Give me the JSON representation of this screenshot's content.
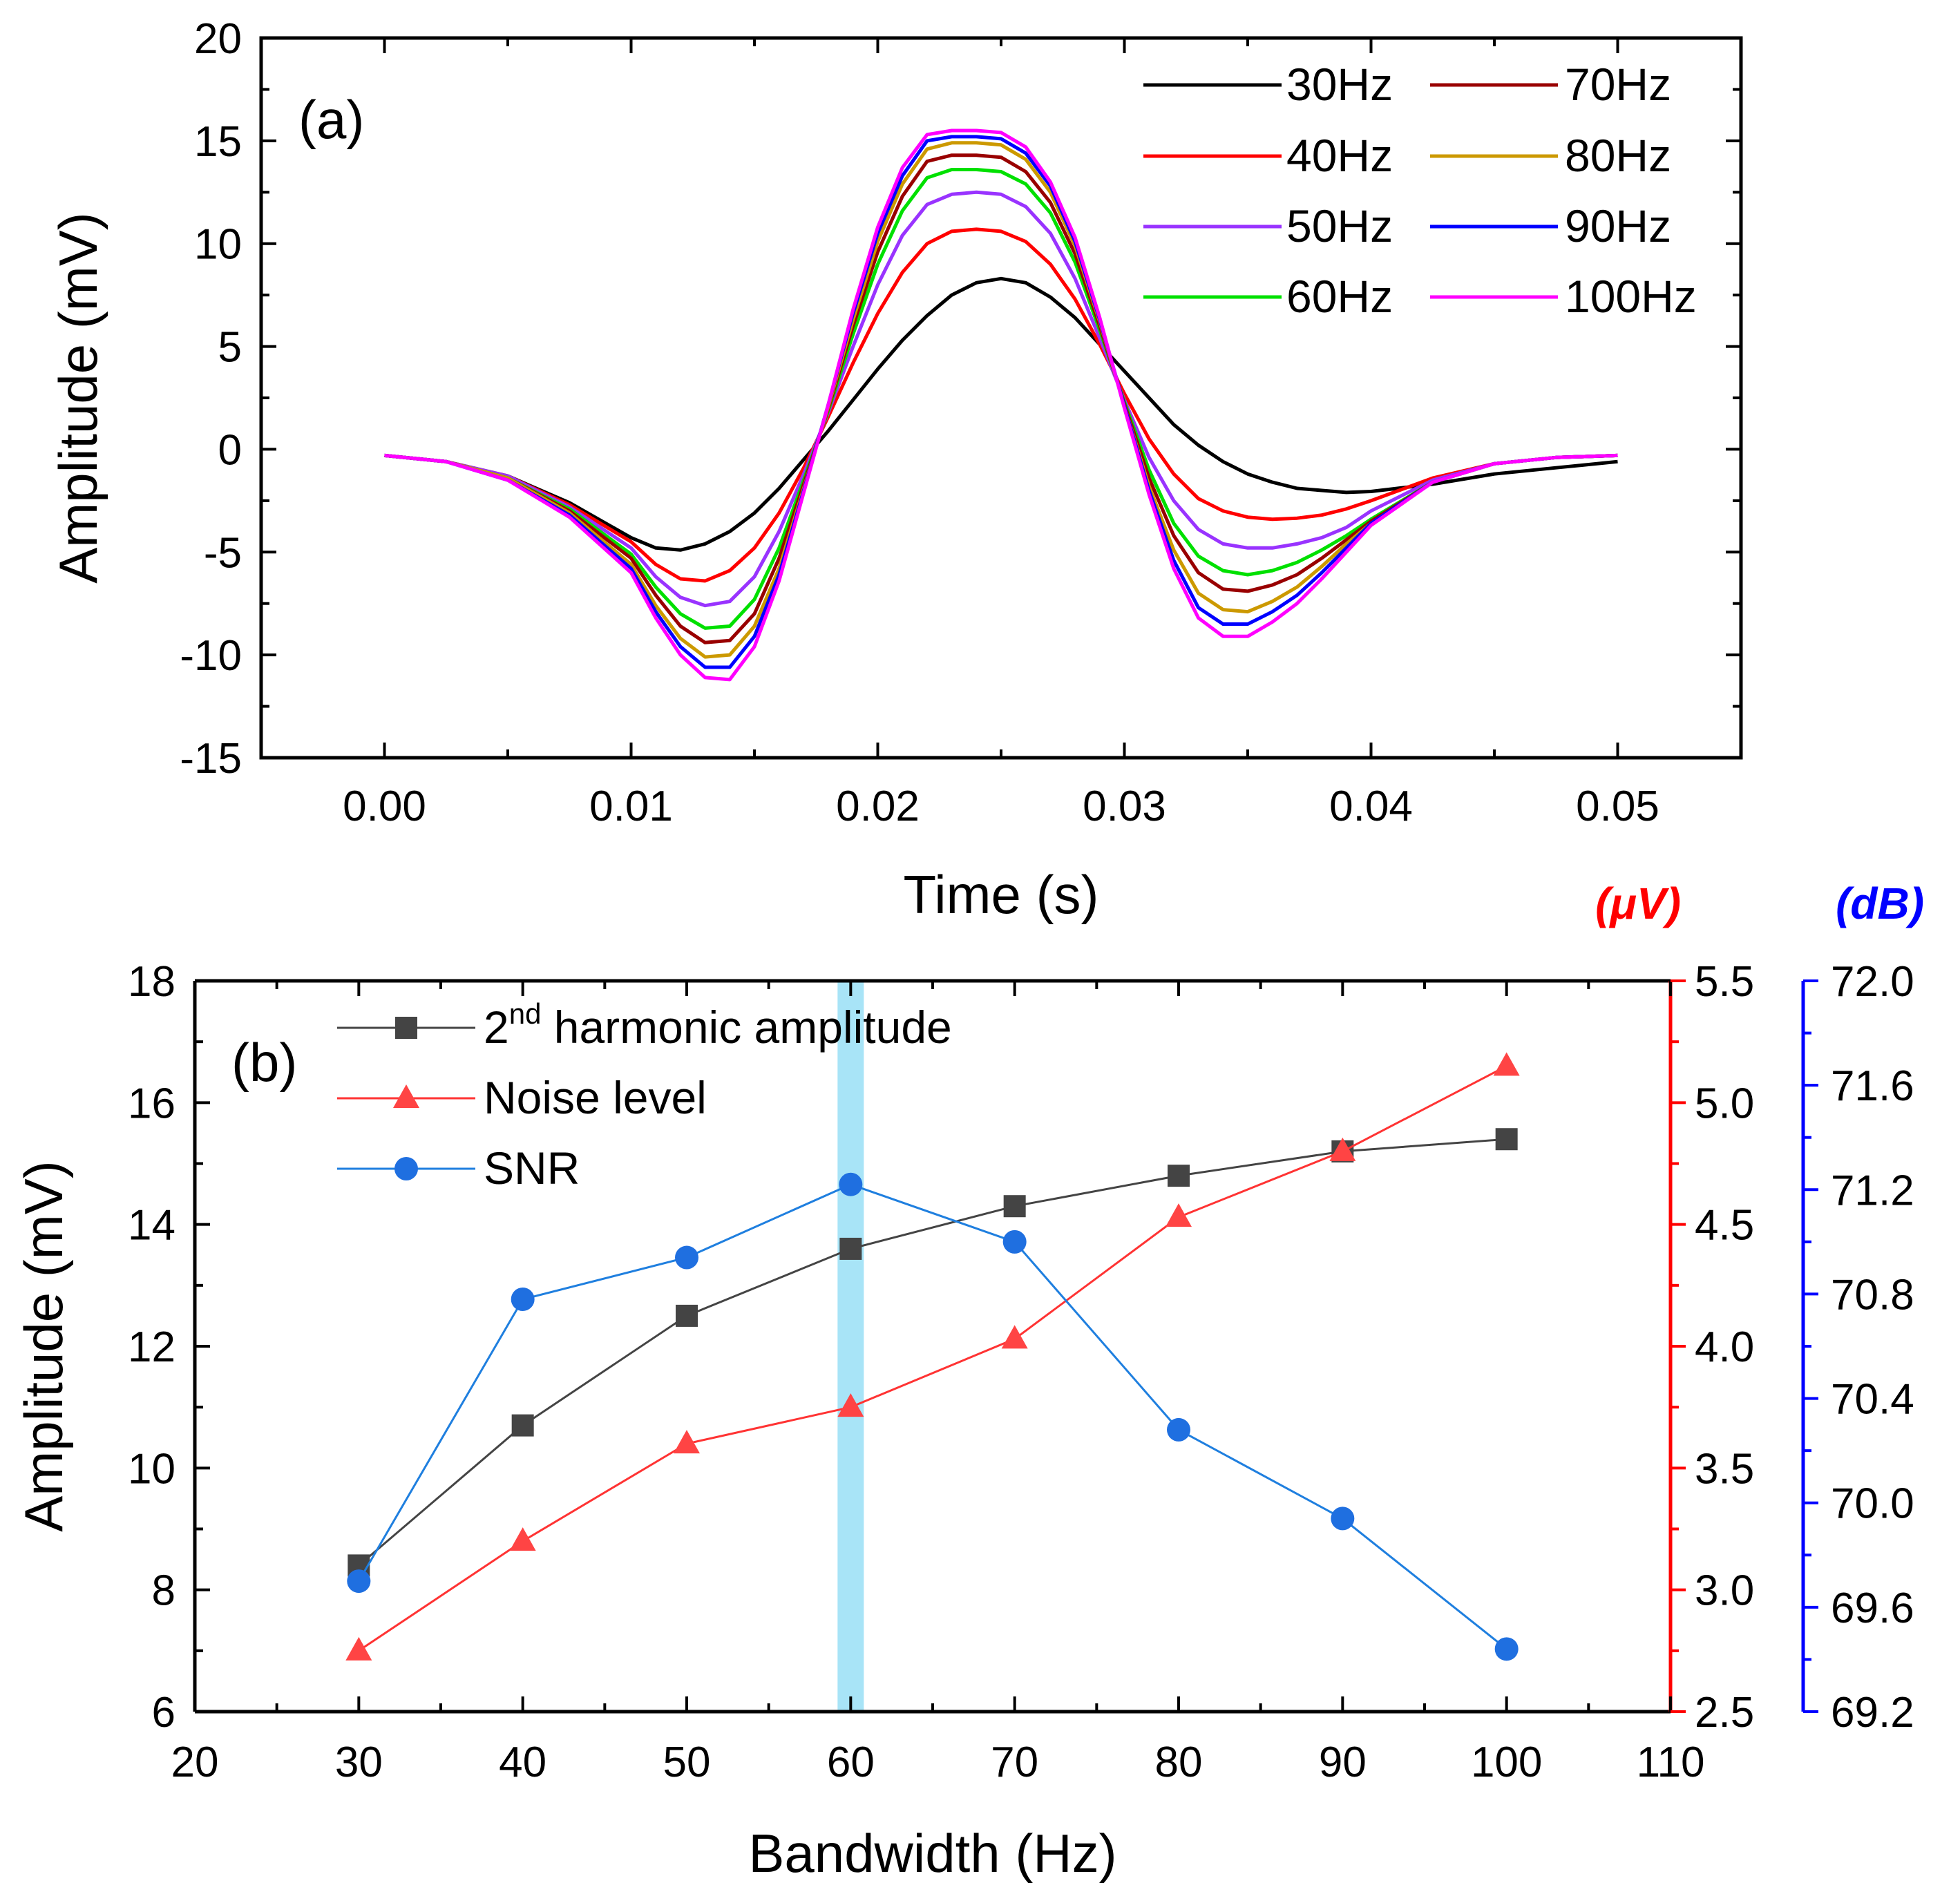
{
  "chart_data": [
    {
      "type": "line",
      "panel_label": "(a)",
      "xlabel": "Time (s)",
      "ylabel": "Amplitude (mV)",
      "xlim": [
        -0.005,
        0.055
      ],
      "ylim": [
        -15,
        20
      ],
      "xticks": [
        0.0,
        0.01,
        0.02,
        0.03,
        0.04,
        0.05
      ],
      "xtick_labels": [
        "0.00",
        "0.01",
        "0.02",
        "0.03",
        "0.04",
        "0.05"
      ],
      "yticks": [
        -15,
        -10,
        -5,
        0,
        5,
        10,
        15,
        20
      ],
      "ytick_labels": [
        "-15",
        "-10",
        "-5",
        "0",
        "5",
        "10",
        "15",
        "20"
      ],
      "x": [
        0,
        0.0025,
        0.005,
        0.0075,
        0.01,
        0.011,
        0.012,
        0.013,
        0.014,
        0.015,
        0.016,
        0.017,
        0.018,
        0.019,
        0.02,
        0.021,
        0.022,
        0.023,
        0.024,
        0.025,
        0.026,
        0.027,
        0.028,
        0.029,
        0.03,
        0.031,
        0.032,
        0.033,
        0.034,
        0.035,
        0.036,
        0.037,
        0.038,
        0.039,
        0.04,
        0.0425,
        0.045,
        0.0475,
        0.05
      ],
      "series": [
        {
          "name": "30Hz",
          "color": "#000000",
          "values": [
            -0.3,
            -0.6,
            -1.3,
            -2.6,
            -4.3,
            -4.8,
            -4.9,
            -4.6,
            -4.0,
            -3.1,
            -1.9,
            -0.5,
            0.9,
            2.4,
            3.9,
            5.3,
            6.5,
            7.5,
            8.1,
            8.3,
            8.1,
            7.4,
            6.4,
            5.1,
            3.8,
            2.5,
            1.2,
            0.2,
            -0.6,
            -1.2,
            -1.6,
            -1.9,
            -2.0,
            -2.1,
            -2.05,
            -1.7,
            -1.2,
            -0.9,
            -0.6
          ]
        },
        {
          "name": "40Hz",
          "color": "#ff0000",
          "values": [
            -0.3,
            -0.6,
            -1.3,
            -2.7,
            -4.5,
            -5.6,
            -6.3,
            -6.4,
            -5.9,
            -4.8,
            -3.1,
            -0.9,
            1.6,
            4.2,
            6.6,
            8.6,
            10.0,
            10.6,
            10.7,
            10.6,
            10.1,
            9.0,
            7.3,
            5.1,
            2.7,
            0.5,
            -1.2,
            -2.4,
            -3.0,
            -3.3,
            -3.4,
            -3.35,
            -3.2,
            -2.9,
            -2.5,
            -1.4,
            -0.7,
            -0.4,
            -0.3
          ]
        },
        {
          "name": "50Hz",
          "color": "#9933ff",
          "values": [
            -0.3,
            -0.6,
            -1.3,
            -2.8,
            -4.8,
            -6.2,
            -7.2,
            -7.6,
            -7.4,
            -6.2,
            -4.0,
            -1.2,
            1.8,
            5.0,
            8.0,
            10.4,
            11.9,
            12.4,
            12.5,
            12.4,
            11.8,
            10.5,
            8.3,
            5.4,
            2.4,
            -0.4,
            -2.5,
            -3.9,
            -4.6,
            -4.8,
            -4.8,
            -4.6,
            -4.3,
            -3.8,
            -3.0,
            -1.5,
            -0.7,
            -0.4,
            -0.3
          ]
        },
        {
          "name": "60Hz",
          "color": "#00e000",
          "values": [
            -0.3,
            -0.6,
            -1.4,
            -2.9,
            -5.1,
            -6.7,
            -8.0,
            -8.7,
            -8.6,
            -7.3,
            -4.8,
            -1.5,
            1.9,
            5.6,
            9.0,
            11.6,
            13.2,
            13.6,
            13.6,
            13.5,
            12.9,
            11.5,
            9.1,
            5.8,
            2.3,
            -1.0,
            -3.6,
            -5.2,
            -5.9,
            -6.1,
            -5.9,
            -5.5,
            -4.9,
            -4.2,
            -3.4,
            -1.6,
            -0.7,
            -0.4,
            -0.3
          ]
        },
        {
          "name": "70Hz",
          "color": "#990000",
          "values": [
            -0.3,
            -0.6,
            -1.4,
            -3.0,
            -5.3,
            -7.1,
            -8.6,
            -9.4,
            -9.3,
            -8.0,
            -5.3,
            -1.7,
            2.0,
            6.0,
            9.6,
            12.3,
            14.0,
            14.3,
            14.3,
            14.2,
            13.5,
            12.0,
            9.5,
            6.0,
            2.2,
            -1.4,
            -4.2,
            -6.0,
            -6.8,
            -6.9,
            -6.6,
            -6.1,
            -5.3,
            -4.4,
            -3.5,
            -1.6,
            -0.7,
            -0.4,
            -0.3
          ]
        },
        {
          "name": "80Hz",
          "color": "#cc9900",
          "values": [
            -0.3,
            -0.6,
            -1.4,
            -3.1,
            -5.6,
            -7.6,
            -9.2,
            -10.1,
            -10.0,
            -8.6,
            -5.8,
            -1.9,
            2.1,
            6.3,
            10.1,
            12.9,
            14.6,
            14.9,
            14.9,
            14.8,
            14.1,
            12.5,
            9.9,
            6.2,
            2.1,
            -1.8,
            -4.9,
            -7.0,
            -7.8,
            -7.9,
            -7.4,
            -6.7,
            -5.7,
            -4.6,
            -3.6,
            -1.6,
            -0.7,
            -0.4,
            -0.3
          ]
        },
        {
          "name": "90Hz",
          "color": "#0000ff",
          "values": [
            -0.3,
            -0.6,
            -1.5,
            -3.2,
            -5.8,
            -7.9,
            -9.6,
            -10.6,
            -10.6,
            -9.1,
            -6.1,
            -2.0,
            2.2,
            6.6,
            10.5,
            13.3,
            15.0,
            15.2,
            15.2,
            15.1,
            14.4,
            12.8,
            10.1,
            6.3,
            2.1,
            -2.0,
            -5.4,
            -7.7,
            -8.5,
            -8.5,
            -7.9,
            -7.1,
            -6.0,
            -4.8,
            -3.6,
            -1.6,
            -0.7,
            -0.4,
            -0.3
          ]
        },
        {
          "name": "100Hz",
          "color": "#ff00ff",
          "values": [
            -0.3,
            -0.6,
            -1.5,
            -3.3,
            -6.0,
            -8.2,
            -10.0,
            -11.1,
            -11.2,
            -9.6,
            -6.4,
            -2.1,
            2.2,
            6.8,
            10.8,
            13.7,
            15.3,
            15.5,
            15.5,
            15.4,
            14.7,
            13.0,
            10.3,
            6.4,
            2.0,
            -2.2,
            -5.8,
            -8.2,
            -9.1,
            -9.1,
            -8.4,
            -7.5,
            -6.3,
            -5.0,
            -3.7,
            -1.6,
            -0.7,
            -0.4,
            -0.3
          ]
        }
      ]
    },
    {
      "type": "line",
      "panel_label": "(b)",
      "xlabel": "Bandwidth (Hz)",
      "ylabel": "Amplitude (mV)",
      "xlim": [
        20,
        110
      ],
      "ylim": [
        6,
        18
      ],
      "xticks": [
        20,
        30,
        40,
        50,
        60,
        70,
        80,
        90,
        100,
        110
      ],
      "xtick_labels": [
        "20",
        "30",
        "40",
        "50",
        "60",
        "70",
        "80",
        "90",
        "100",
        "110"
      ],
      "yticks": [
        6,
        8,
        10,
        12,
        14,
        16,
        18
      ],
      "ytick_labels": [
        "6",
        "8",
        "10",
        "12",
        "14",
        "16",
        "18"
      ],
      "right_axis_1": {
        "unit_label": "(μV)",
        "color": "#ff0000",
        "ylim": [
          2.5,
          5.5
        ],
        "yticks": [
          2.5,
          3.0,
          3.5,
          4.0,
          4.5,
          5.0,
          5.5
        ],
        "ytick_labels": [
          "2.5",
          "3.0",
          "3.5",
          "4.0",
          "4.5",
          "5.0",
          "5.5"
        ]
      },
      "right_axis_2": {
        "unit_label": "(dB)",
        "color": "#0000ff",
        "ylim": [
          69.2,
          72.0
        ],
        "yticks": [
          69.2,
          69.6,
          70.0,
          70.4,
          70.8,
          71.2,
          71.6,
          72.0
        ],
        "ytick_labels": [
          "69.2",
          "69.6",
          "70.0",
          "70.4",
          "70.8",
          "71.2",
          "71.6",
          "72.0"
        ]
      },
      "highlight_band": {
        "x": 60,
        "color": "#a8e4f7"
      },
      "x": [
        30,
        40,
        50,
        60,
        70,
        80,
        90,
        100
      ],
      "series": [
        {
          "name": "2nd harmonic amplitude",
          "name_base": "2",
          "name_sup": "nd",
          "name_rest": " harmonic amplitude",
          "axis": "left",
          "marker": "square",
          "line_color": "#444444",
          "marker_color": "#444444",
          "values": [
            8.4,
            10.7,
            12.5,
            13.6,
            14.3,
            14.8,
            15.2,
            15.4
          ]
        },
        {
          "name": "Noise level",
          "axis": "right1",
          "marker": "triangle",
          "line_color": "#ff3333",
          "marker_color": "#ff4444",
          "values": [
            2.75,
            3.2,
            3.6,
            3.75,
            4.03,
            4.53,
            4.8,
            5.15
          ]
        },
        {
          "name": "SNR",
          "axis": "right2",
          "marker": "circle",
          "line_color": "#1f7fdf",
          "marker_color": "#1f6fe0",
          "values": [
            69.7,
            70.78,
            70.94,
            71.22,
            71.0,
            70.28,
            69.94,
            69.44
          ]
        }
      ]
    }
  ]
}
